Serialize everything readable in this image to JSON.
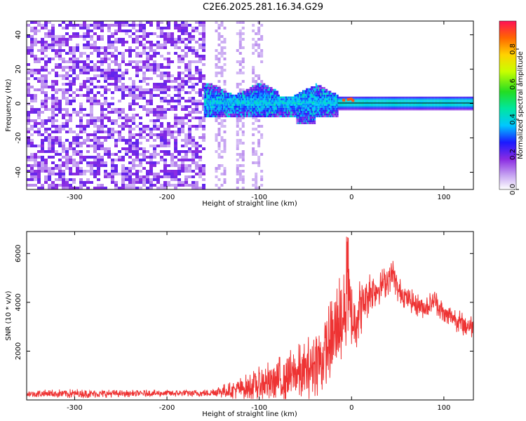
{
  "title": "C2E6.2025.281.16.34.G29",
  "chart_data": [
    {
      "type": "heatmap",
      "name": "spectrogram",
      "xlabel": "Height of straight line (km)",
      "ylabel": "Frequency (Hz)",
      "xlim": [
        -352,
        132
      ],
      "ylim": [
        -50,
        48
      ],
      "xticks": [
        -300,
        -200,
        -100,
        0,
        100
      ],
      "xtick_labels": [
        "-300",
        "-200",
        "-100",
        "0",
        "100"
      ],
      "yticks": [
        -40,
        -20,
        0,
        20,
        40
      ],
      "ytick_labels": [
        "-40",
        "-20",
        "0",
        "20",
        "40"
      ],
      "colorbar": {
        "label": "Normalized spectral amplitude",
        "range": [
          0,
          0.96
        ],
        "ticks": [
          0.0,
          0.2,
          0.4,
          0.6,
          0.8
        ],
        "tick_labels": [
          "0.0",
          "0.2",
          "0.4",
          "0.6",
          "0.8"
        ]
      },
      "regions": [
        {
          "x_range": [
            -352,
            -160
          ],
          "description_level": 0.08
        },
        {
          "x_range": [
            -160,
            -15
          ],
          "band_hz": [
            -10,
            8
          ],
          "peak_level": 0.3
        },
        {
          "x_range": [
            -15,
            132
          ],
          "band_hz": [
            -3,
            3
          ],
          "peak_level": 0.9
        }
      ]
    },
    {
      "type": "line",
      "name": "snr",
      "xlabel": "Height of straight line (km)",
      "ylabel": "SNR (10 * v/v)",
      "xlim": [
        -352,
        132
      ],
      "ylim": [
        0,
        6900
      ],
      "xticks": [
        -300,
        -200,
        -100,
        0,
        100
      ],
      "xtick_labels": [
        "-300",
        "-200",
        "-100",
        "0",
        "100"
      ],
      "yticks": [
        2000,
        4000,
        6000
      ],
      "ytick_labels": [
        "2000",
        "4000",
        "6000"
      ],
      "color": "#ee3333",
      "envelope": {
        "x": [
          -352,
          -300,
          -250,
          -200,
          -160,
          -130,
          -110,
          -90,
          -70,
          -50,
          -30,
          -20,
          -10,
          -5,
          0,
          10,
          20,
          30,
          40,
          45,
          50,
          60,
          70,
          80,
          90,
          100,
          110,
          120,
          132
        ],
        "center": [
          250,
          260,
          260,
          270,
          280,
          400,
          550,
          700,
          900,
          1200,
          1800,
          2500,
          3500,
          4200,
          3200,
          3800,
          4500,
          4600,
          5000,
          5200,
          4500,
          4200,
          3900,
          3800,
          4100,
          3500,
          3400,
          3100,
          3000
        ],
        "spread": [
          150,
          200,
          150,
          150,
          150,
          350,
          600,
          900,
          1100,
          1300,
          1700,
          1900,
          2300,
          2600,
          1700,
          1200,
          900,
          700,
          700,
          600,
          600,
          500,
          500,
          500,
          500,
          500,
          500,
          500,
          500
        ]
      }
    }
  ]
}
